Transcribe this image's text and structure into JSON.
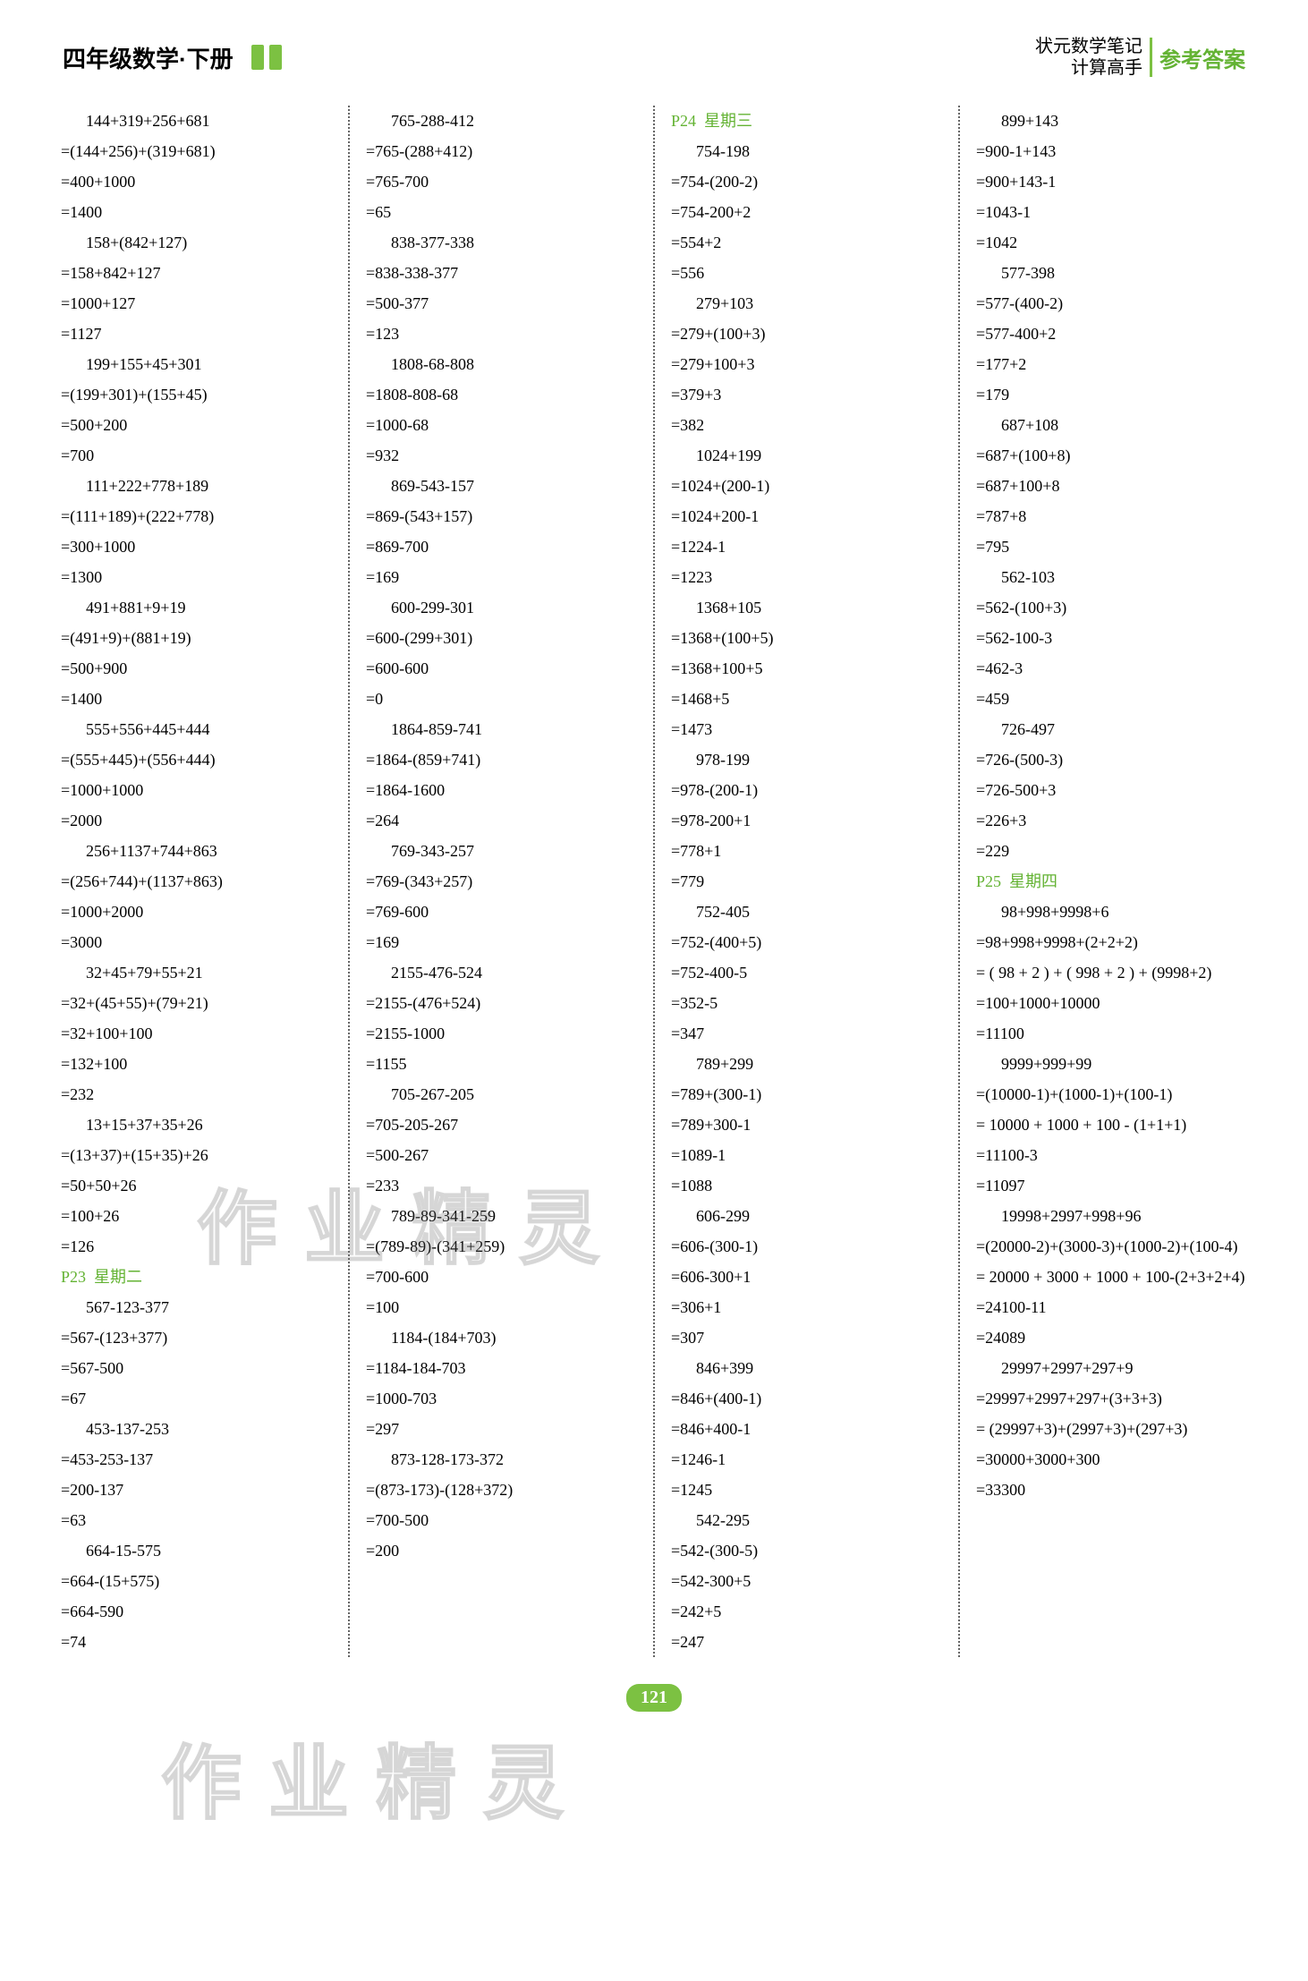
{
  "header": {
    "book_title": "四年级数学·下册",
    "series_line1": "状元数学笔记",
    "series_line2": "计算高手",
    "answers_label": "参考答案"
  },
  "page_number": "121",
  "watermark_text": "作业精灵",
  "columns": [
    {
      "lines": [
        {
          "text": "144+319+256+681",
          "indent": true
        },
        {
          "text": "=(144+256)+(319+681)"
        },
        {
          "text": "=400+1000"
        },
        {
          "text": "=1400"
        },
        {
          "text": "158+(842+127)",
          "indent": true
        },
        {
          "text": "=158+842+127"
        },
        {
          "text": "=1000+127"
        },
        {
          "text": "=1127"
        },
        {
          "text": "199+155+45+301",
          "indent": true
        },
        {
          "text": "=(199+301)+(155+45)"
        },
        {
          "text": "=500+200"
        },
        {
          "text": "=700"
        },
        {
          "text": "111+222+778+189",
          "indent": true
        },
        {
          "text": "=(111+189)+(222+778)"
        },
        {
          "text": "=300+1000"
        },
        {
          "text": "=1300"
        },
        {
          "text": "491+881+9+19",
          "indent": true
        },
        {
          "text": "=(491+9)+(881+19)"
        },
        {
          "text": "=500+900"
        },
        {
          "text": "=1400"
        },
        {
          "text": "555+556+445+444",
          "indent": true
        },
        {
          "text": "=(555+445)+(556+444)"
        },
        {
          "text": "=1000+1000"
        },
        {
          "text": "=2000"
        },
        {
          "text": "256+1137+744+863",
          "indent": true
        },
        {
          "text": "=(256+744)+(1137+863)"
        },
        {
          "text": "=1000+2000"
        },
        {
          "text": "=3000"
        },
        {
          "text": "32+45+79+55+21",
          "indent": true
        },
        {
          "text": "=32+(45+55)+(79+21)"
        },
        {
          "text": "=32+100+100"
        },
        {
          "text": "=132+100"
        },
        {
          "text": "=232"
        },
        {
          "text": "13+15+37+35+26",
          "indent": true
        },
        {
          "text": "=(13+37)+(15+35)+26"
        },
        {
          "text": "=50+50+26"
        },
        {
          "text": "=100+26"
        },
        {
          "text": "=126"
        },
        {
          "text": "P23  星期二",
          "section": true
        },
        {
          "text": "567-123-377",
          "indent": true
        },
        {
          "text": "=567-(123+377)"
        },
        {
          "text": "=567-500"
        },
        {
          "text": "=67"
        },
        {
          "text": "453-137-253",
          "indent": true
        },
        {
          "text": "=453-253-137"
        },
        {
          "text": "=200-137"
        },
        {
          "text": "=63"
        },
        {
          "text": "664-15-575",
          "indent": true
        },
        {
          "text": "=664-(15+575)"
        },
        {
          "text": "=664-590"
        },
        {
          "text": "=74"
        }
      ]
    },
    {
      "lines": [
        {
          "text": "765-288-412",
          "indent": true
        },
        {
          "text": "=765-(288+412)"
        },
        {
          "text": "=765-700"
        },
        {
          "text": "=65"
        },
        {
          "text": "838-377-338",
          "indent": true
        },
        {
          "text": "=838-338-377"
        },
        {
          "text": "=500-377"
        },
        {
          "text": "=123"
        },
        {
          "text": "1808-68-808",
          "indent": true
        },
        {
          "text": "=1808-808-68"
        },
        {
          "text": "=1000-68"
        },
        {
          "text": "=932"
        },
        {
          "text": "869-543-157",
          "indent": true
        },
        {
          "text": "=869-(543+157)"
        },
        {
          "text": "=869-700"
        },
        {
          "text": "=169"
        },
        {
          "text": "600-299-301",
          "indent": true
        },
        {
          "text": "=600-(299+301)"
        },
        {
          "text": "=600-600"
        },
        {
          "text": "=0"
        },
        {
          "text": "1864-859-741",
          "indent": true
        },
        {
          "text": "=1864-(859+741)"
        },
        {
          "text": "=1864-1600"
        },
        {
          "text": "=264"
        },
        {
          "text": "769-343-257",
          "indent": true
        },
        {
          "text": "=769-(343+257)"
        },
        {
          "text": "=769-600"
        },
        {
          "text": "=169"
        },
        {
          "text": "2155-476-524",
          "indent": true
        },
        {
          "text": "=2155-(476+524)"
        },
        {
          "text": "=2155-1000"
        },
        {
          "text": "=1155"
        },
        {
          "text": "705-267-205",
          "indent": true
        },
        {
          "text": "=705-205-267"
        },
        {
          "text": "=500-267"
        },
        {
          "text": "=233"
        },
        {
          "text": "789-89-341-259",
          "indent": true
        },
        {
          "text": "=(789-89)-(341+259)"
        },
        {
          "text": "=700-600"
        },
        {
          "text": "=100"
        },
        {
          "text": "1184-(184+703)",
          "indent": true
        },
        {
          "text": "=1184-184-703"
        },
        {
          "text": "=1000-703"
        },
        {
          "text": "=297"
        },
        {
          "text": "873-128-173-372",
          "indent": true
        },
        {
          "text": "=(873-173)-(128+372)"
        },
        {
          "text": "=700-500"
        },
        {
          "text": "=200"
        }
      ]
    },
    {
      "lines": [
        {
          "text": "P24  星期三",
          "section": true
        },
        {
          "text": "754-198",
          "indent": true
        },
        {
          "text": "=754-(200-2)"
        },
        {
          "text": "=754-200+2"
        },
        {
          "text": "=554+2"
        },
        {
          "text": "=556"
        },
        {
          "text": "279+103",
          "indent": true
        },
        {
          "text": "=279+(100+3)"
        },
        {
          "text": "=279+100+3"
        },
        {
          "text": "=379+3"
        },
        {
          "text": "=382"
        },
        {
          "text": "1024+199",
          "indent": true
        },
        {
          "text": "=1024+(200-1)"
        },
        {
          "text": "=1024+200-1"
        },
        {
          "text": "=1224-1"
        },
        {
          "text": "=1223"
        },
        {
          "text": "1368+105",
          "indent": true
        },
        {
          "text": "=1368+(100+5)"
        },
        {
          "text": "=1368+100+5"
        },
        {
          "text": "=1468+5"
        },
        {
          "text": "=1473"
        },
        {
          "text": "978-199",
          "indent": true
        },
        {
          "text": "=978-(200-1)"
        },
        {
          "text": "=978-200+1"
        },
        {
          "text": "=778+1"
        },
        {
          "text": "=779"
        },
        {
          "text": "752-405",
          "indent": true
        },
        {
          "text": "=752-(400+5)"
        },
        {
          "text": "=752-400-5"
        },
        {
          "text": "=352-5"
        },
        {
          "text": "=347"
        },
        {
          "text": "789+299",
          "indent": true
        },
        {
          "text": "=789+(300-1)"
        },
        {
          "text": "=789+300-1"
        },
        {
          "text": "=1089-1"
        },
        {
          "text": "=1088"
        },
        {
          "text": "606-299",
          "indent": true
        },
        {
          "text": "=606-(300-1)"
        },
        {
          "text": "=606-300+1"
        },
        {
          "text": "=306+1"
        },
        {
          "text": "=307"
        },
        {
          "text": "846+399",
          "indent": true
        },
        {
          "text": "=846+(400-1)"
        },
        {
          "text": "=846+400-1"
        },
        {
          "text": "=1246-1"
        },
        {
          "text": "=1245"
        },
        {
          "text": "542-295",
          "indent": true
        },
        {
          "text": "=542-(300-5)"
        },
        {
          "text": "=542-300+5"
        },
        {
          "text": "=242+5"
        },
        {
          "text": "=247"
        }
      ]
    },
    {
      "lines": [
        {
          "text": "899+143",
          "indent": true
        },
        {
          "text": "=900-1+143"
        },
        {
          "text": "=900+143-1"
        },
        {
          "text": "=1043-1"
        },
        {
          "text": "=1042"
        },
        {
          "text": "577-398",
          "indent": true
        },
        {
          "text": "=577-(400-2)"
        },
        {
          "text": "=577-400+2"
        },
        {
          "text": "=177+2"
        },
        {
          "text": "=179"
        },
        {
          "text": "687+108",
          "indent": true
        },
        {
          "text": "=687+(100+8)"
        },
        {
          "text": "=687+100+8"
        },
        {
          "text": "=787+8"
        },
        {
          "text": "=795"
        },
        {
          "text": "562-103",
          "indent": true
        },
        {
          "text": "=562-(100+3)"
        },
        {
          "text": "=562-100-3"
        },
        {
          "text": "=462-3"
        },
        {
          "text": "=459"
        },
        {
          "text": "726-497",
          "indent": true
        },
        {
          "text": "=726-(500-3)"
        },
        {
          "text": "=726-500+3"
        },
        {
          "text": "=226+3"
        },
        {
          "text": "=229"
        },
        {
          "text": "P25  星期四",
          "section": true
        },
        {
          "text": "98+998+9998+6",
          "indent": true
        },
        {
          "text": "=98+998+9998+(2+2+2)"
        },
        {
          "text": "= ( 98 + 2 ) + ( 998 + 2 ) + (9998+2)"
        },
        {
          "text": "=100+1000+10000"
        },
        {
          "text": "=11100"
        },
        {
          "text": "9999+999+99",
          "indent": true
        },
        {
          "text": "=(10000-1)+(1000-1)+(100-1)"
        },
        {
          "text": "= 10000 + 1000 + 100 - (1+1+1)"
        },
        {
          "text": "=11100-3"
        },
        {
          "text": "=11097"
        },
        {
          "text": "19998+2997+998+96",
          "indent": true
        },
        {
          "text": "=(20000-2)+(3000-3)+(1000-2)+(100-4)"
        },
        {
          "text": "= 20000 + 3000 + 1000 + 100-(2+3+2+4)"
        },
        {
          "text": "=24100-11"
        },
        {
          "text": "=24089"
        },
        {
          "text": "29997+2997+297+9",
          "indent": true
        },
        {
          "text": "=29997+2997+297+(3+3+3)"
        },
        {
          "text": "= (29997+3)+(2997+3)+(297+3)"
        },
        {
          "text": "=30000+3000+300"
        },
        {
          "text": "=33300"
        }
      ]
    }
  ]
}
